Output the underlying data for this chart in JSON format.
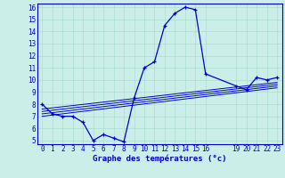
{
  "title": "Graphe des températures (°c)",
  "bg_color": "#cceee8",
  "line_color": "#0000cc",
  "grid_color": "#aaddcc",
  "x_ticks": [
    0,
    1,
    2,
    3,
    4,
    5,
    6,
    7,
    8,
    9,
    10,
    11,
    12,
    13,
    14,
    15,
    16,
    19,
    20,
    21,
    22,
    23
  ],
  "ylim": [
    5,
    16
  ],
  "yticks": [
    5,
    6,
    7,
    8,
    9,
    10,
    11,
    12,
    13,
    14,
    15,
    16
  ],
  "main_series_x": [
    0,
    1,
    2,
    3,
    4,
    5,
    6,
    7,
    8,
    9,
    10,
    11,
    12,
    13,
    14,
    15,
    16,
    19,
    20,
    21,
    22,
    23
  ],
  "main_series_y": [
    8.0,
    7.2,
    7.0,
    7.0,
    6.5,
    5.0,
    5.5,
    5.2,
    4.9,
    8.5,
    11.0,
    11.5,
    14.5,
    15.5,
    16.0,
    15.8,
    10.5,
    9.5,
    9.2,
    10.2,
    10.0,
    10.2
  ],
  "line1_x": [
    0,
    23
  ],
  "line1_y": [
    7.6,
    9.8
  ],
  "line2_x": [
    0,
    23
  ],
  "line2_y": [
    7.4,
    9.65
  ],
  "line3_x": [
    0,
    23
  ],
  "line3_y": [
    7.2,
    9.5
  ],
  "line4_x": [
    0,
    23
  ],
  "line4_y": [
    7.0,
    9.35
  ],
  "tick_fontsize": 5.5,
  "label_fontsize": 6.5
}
